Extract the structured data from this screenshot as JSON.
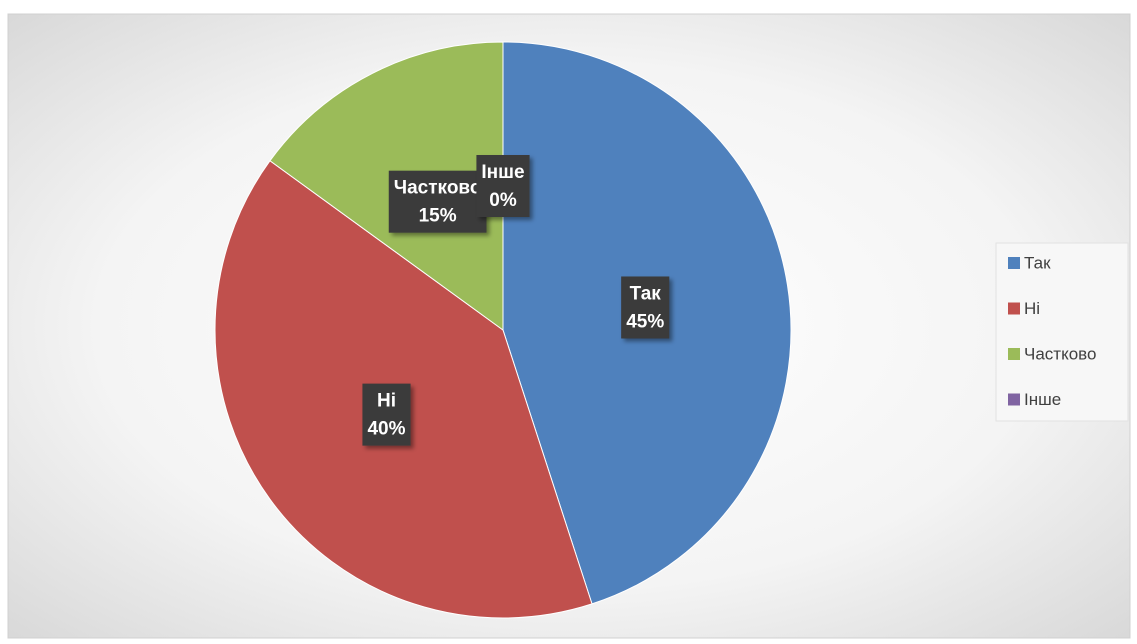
{
  "chart_data": {
    "type": "pie",
    "categories": [
      "Так",
      "Ні",
      "Частково",
      "Інше"
    ],
    "values": [
      45,
      40,
      15,
      0
    ],
    "value_labels": [
      "45%",
      "40%",
      "15%",
      "0%"
    ],
    "colors": [
      "#4f81bd",
      "#c0504d",
      "#9bbb59",
      "#8064a2"
    ],
    "legend": "right"
  }
}
